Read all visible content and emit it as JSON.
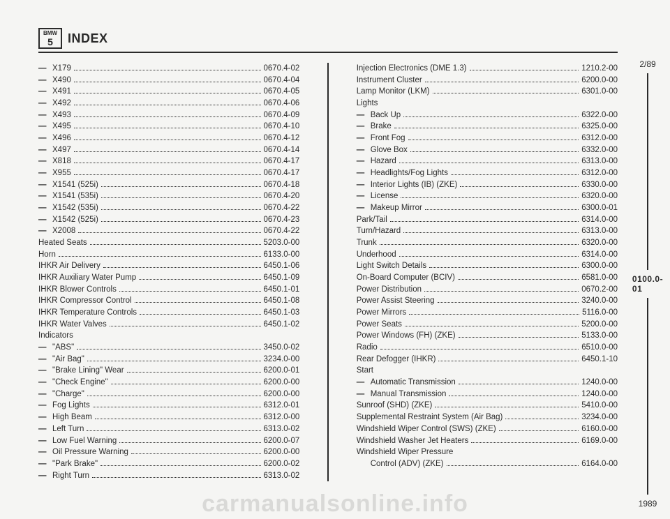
{
  "header": {
    "logo_top": "BMW",
    "logo_bot": "5",
    "title": "INDEX"
  },
  "side": {
    "top": "2/89",
    "mid": "0100.0-01",
    "bot": "1989"
  },
  "watermark": "carmanualsonline.info",
  "left": [
    {
      "dash": true,
      "label": "X179",
      "val": "0670.4-02"
    },
    {
      "dash": true,
      "label": "X490",
      "val": "0670.4-04"
    },
    {
      "dash": true,
      "label": "X491",
      "val": "0670.4-05"
    },
    {
      "dash": true,
      "label": "X492",
      "val": "0670.4-06"
    },
    {
      "dash": true,
      "label": "X493",
      "val": "0670.4-09"
    },
    {
      "dash": true,
      "label": "X495",
      "val": "0670.4-10"
    },
    {
      "dash": true,
      "label": "X496",
      "val": "0670.4-12"
    },
    {
      "dash": true,
      "label": "X497",
      "val": "0670.4-14"
    },
    {
      "dash": true,
      "label": "X818",
      "val": "0670.4-17"
    },
    {
      "dash": true,
      "label": "X955",
      "val": "0670.4-17"
    },
    {
      "dash": true,
      "label": "X1541 (525i)",
      "val": "0670.4-18"
    },
    {
      "dash": true,
      "label": "X1541 (535i)",
      "val": "0670.4-20"
    },
    {
      "dash": true,
      "label": "X1542 (535i)",
      "val": "0670.4-22"
    },
    {
      "dash": true,
      "label": "X1542 (525i)",
      "val": "0670.4-23"
    },
    {
      "dash": true,
      "label": "X2008",
      "val": "0670.4-22"
    },
    {
      "dash": false,
      "label": "Heated Seats",
      "val": "5203.0-00"
    },
    {
      "dash": false,
      "label": "Horn",
      "val": "6133.0-00"
    },
    {
      "dash": false,
      "label": "IHKR Air Delivery",
      "val": "6450.1-06"
    },
    {
      "dash": false,
      "label": "IHKR Auxiliary Water Pump",
      "val": "6450.1-09"
    },
    {
      "dash": false,
      "label": "IHKR Blower Controls",
      "val": "6450.1-01"
    },
    {
      "dash": false,
      "label": "IHKR Compressor Control",
      "val": "6450.1-08"
    },
    {
      "dash": false,
      "label": "IHKR Temperature Controls",
      "val": "6450.1-03"
    },
    {
      "dash": false,
      "label": "IHKR Water Valves",
      "val": "6450.1-02"
    },
    {
      "dash": false,
      "label": "Indicators",
      "val": ""
    },
    {
      "dash": true,
      "label": "\"ABS\"",
      "val": "3450.0-02"
    },
    {
      "dash": true,
      "label": "\"Air Bag\"",
      "val": "3234.0-00"
    },
    {
      "dash": true,
      "label": "\"Brake Lining\" Wear",
      "val": "6200.0-01"
    },
    {
      "dash": true,
      "label": "\"Check Engine\"",
      "val": "6200.0-00"
    },
    {
      "dash": true,
      "label": "\"Charge\"",
      "val": "6200.0-00"
    },
    {
      "dash": true,
      "label": "Fog Lights",
      "val": "6312.0-01"
    },
    {
      "dash": true,
      "label": "High Beam",
      "val": "6312.0-00"
    },
    {
      "dash": true,
      "label": "Left Turn",
      "val": "6313.0-02"
    },
    {
      "dash": true,
      "label": "Low Fuel Warning",
      "val": "6200.0-07"
    },
    {
      "dash": true,
      "label": "Oil Pressure Warning",
      "val": "6200.0-00"
    },
    {
      "dash": true,
      "label": "\"Park Brake\"",
      "val": "6200.0-02"
    },
    {
      "dash": true,
      "label": "Right Turn",
      "val": "6313.0-02"
    }
  ],
  "right": [
    {
      "dash": false,
      "label": "Injection Electronics (DME 1.3)",
      "val": "1210.2-00"
    },
    {
      "dash": false,
      "label": "Instrument Cluster",
      "val": "6200.0-00"
    },
    {
      "dash": false,
      "label": "Lamp Monitor (LKM)",
      "val": "6301.0-00"
    },
    {
      "dash": false,
      "label": "Lights",
      "val": ""
    },
    {
      "dash": true,
      "label": "Back Up",
      "val": "6322.0-00"
    },
    {
      "dash": true,
      "label": "Brake",
      "val": "6325.0-00"
    },
    {
      "dash": true,
      "label": "Front Fog",
      "val": "6312.0-00"
    },
    {
      "dash": true,
      "label": "Glove Box",
      "val": "6332.0-00"
    },
    {
      "dash": true,
      "label": "Hazard",
      "val": "6313.0-00"
    },
    {
      "dash": true,
      "label": "Headlights/Fog Lights",
      "val": "6312.0-00"
    },
    {
      "dash": true,
      "label": "Interior Lights (IB) (ZKE)",
      "val": "6330.0-00"
    },
    {
      "dash": true,
      "label": "License",
      "val": "6320.0-00"
    },
    {
      "dash": true,
      "label": "Makeup Mirror",
      "val": "6300.0-01"
    },
    {
      "dash": false,
      "label": "Park/Tail",
      "val": "6314.0-00"
    },
    {
      "dash": false,
      "label": "Turn/Hazard",
      "val": "6313.0-00"
    },
    {
      "dash": false,
      "label": "Trunk",
      "val": "6320.0-00"
    },
    {
      "dash": false,
      "label": "Underhood",
      "val": "6314.0-00"
    },
    {
      "dash": false,
      "label": "Light Switch Details",
      "val": "6300.0-00"
    },
    {
      "dash": false,
      "label": "On-Board Computer (BCIV)",
      "val": "6581.0-00"
    },
    {
      "dash": false,
      "label": "Power Distribution",
      "val": "0670.2-00"
    },
    {
      "dash": false,
      "label": "Power Assist Steering",
      "val": "3240.0-00"
    },
    {
      "dash": false,
      "label": "Power Mirrors",
      "val": "5116.0-00"
    },
    {
      "dash": false,
      "label": "Power Seats",
      "val": "5200.0-00"
    },
    {
      "dash": false,
      "label": "Power Windows (FH) (ZKE)",
      "val": "5133.0-00"
    },
    {
      "dash": false,
      "label": "Radio",
      "val": "6510.0-00"
    },
    {
      "dash": false,
      "label": "Rear Defogger (IHKR)",
      "val": "6450.1-10"
    },
    {
      "dash": false,
      "label": "Start",
      "val": ""
    },
    {
      "dash": true,
      "label": "Automatic Transmission",
      "val": "1240.0-00"
    },
    {
      "dash": true,
      "label": "Manual Transmission",
      "val": "1240.0-00"
    },
    {
      "dash": false,
      "label": "Sunroof (SHD) (ZKE)",
      "val": "5410.0-00"
    },
    {
      "dash": false,
      "label": "Supplemental Restraint System (Air Bag)",
      "val": "3234.0-00"
    },
    {
      "dash": false,
      "label": "Windshield Wiper Control (SWS) (ZKE)",
      "val": "6160.0-00"
    },
    {
      "dash": false,
      "label": "Windshield Washer Jet Heaters",
      "val": "6169.0-00"
    },
    {
      "dash": false,
      "label": "Windshield Wiper Pressure",
      "val": ""
    },
    {
      "dash": false,
      "indent": true,
      "label": "Control (ADV) (ZKE)",
      "val": "6164.0-00"
    }
  ]
}
